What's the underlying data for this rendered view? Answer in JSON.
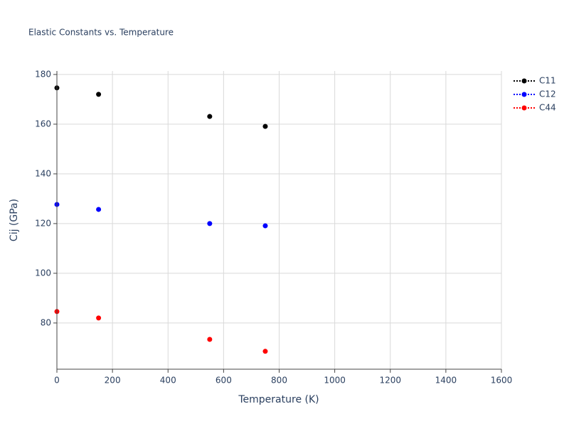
{
  "chart_data": {
    "type": "scatter",
    "title": "Elastic Constants vs. Temperature",
    "x_label": "Temperature (K)",
    "y_label": "Cij (GPa)",
    "series": [
      {
        "name": "C11",
        "color": "#000000",
        "x": [
          0,
          150,
          550,
          750
        ],
        "values": [
          174.6,
          172,
          163.1,
          159.1
        ]
      },
      {
        "name": "C12",
        "color": "#0000ff",
        "x": [
          0,
          150,
          550,
          750
        ],
        "values": [
          127.7,
          125.7,
          120,
          119.1
        ]
      },
      {
        "name": "C44",
        "color": "#ff0000",
        "x": [
          0,
          150,
          550,
          750
        ],
        "values": [
          84.6,
          82,
          73.4,
          68.6
        ]
      }
    ],
    "xlim": [
      0,
      1600
    ],
    "xticks": [
      0,
      200,
      400,
      600,
      800,
      1000,
      1200,
      1400,
      1600
    ],
    "ylim": [
      61.4,
      181.4
    ],
    "yticks": [
      80,
      100,
      120,
      140,
      160,
      180
    ],
    "grid": true,
    "legend": "top-right"
  }
}
